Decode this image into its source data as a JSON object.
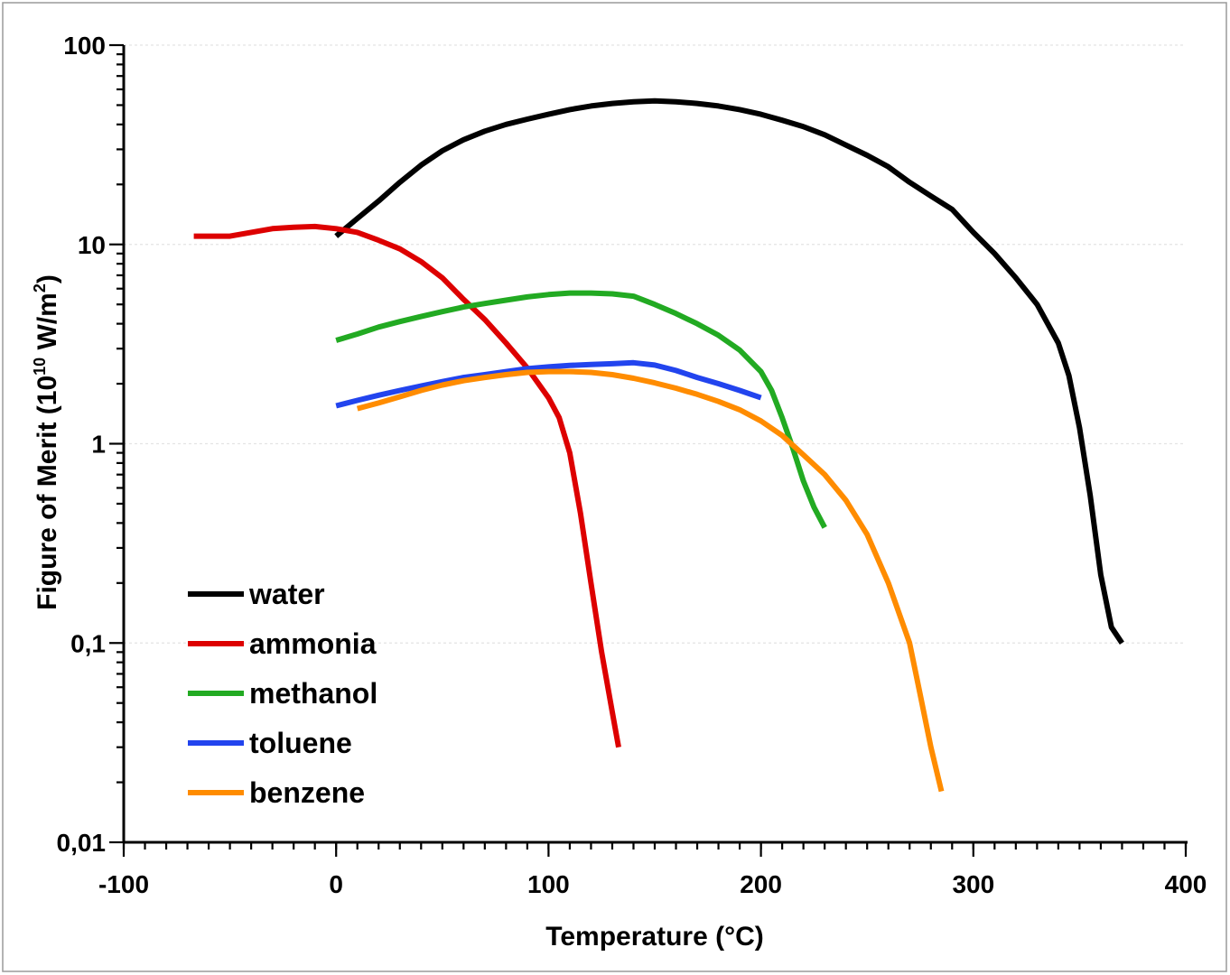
{
  "chart_data": {
    "type": "line",
    "xlabel": "Temperature (°C)",
    "ylabel": {
      "prefix": "Figure of Merit (10",
      "sup1": "10",
      "mid": " W/m",
      "sup2": "2",
      "suffix": ")"
    },
    "xlim": [
      -100,
      400
    ],
    "ylim": [
      0.01,
      100
    ],
    "yscale": "log",
    "x_ticks": [
      -100,
      0,
      100,
      200,
      300,
      400
    ],
    "x_tick_labels": [
      "-100",
      "0",
      "100",
      "200",
      "300",
      "400"
    ],
    "x_minor_step": 10,
    "y_ticks": [
      0.01,
      0.1,
      1,
      10,
      100
    ],
    "y_tick_labels": [
      "0,01",
      "0,1",
      "1",
      "10",
      "100"
    ],
    "grid": true,
    "legend_position": "lower-left",
    "series": [
      {
        "name": "water",
        "color": "#000000",
        "x": [
          0,
          10,
          20,
          30,
          40,
          50,
          60,
          70,
          80,
          90,
          100,
          110,
          120,
          130,
          140,
          150,
          160,
          170,
          180,
          190,
          200,
          210,
          220,
          230,
          240,
          250,
          260,
          270,
          280,
          290,
          300,
          310,
          320,
          330,
          340,
          345,
          350,
          355,
          360,
          365,
          370
        ],
        "y": [
          11,
          13.5,
          16.5,
          20.5,
          25,
          29.5,
          33.5,
          37,
          40,
          42.5,
          45,
          47.5,
          49.5,
          51,
          52,
          52.5,
          52,
          51,
          49.5,
          47.5,
          45,
          42,
          39,
          35.5,
          31.5,
          28,
          24.5,
          20.5,
          17.5,
          15,
          11.5,
          9,
          6.8,
          5,
          3.2,
          2.2,
          1.2,
          0.55,
          0.22,
          0.12,
          0.1
        ]
      },
      {
        "name": "ammonia",
        "color": "#dd0000",
        "x": [
          -67,
          -60,
          -50,
          -40,
          -30,
          -20,
          -10,
          0,
          10,
          20,
          30,
          40,
          50,
          60,
          70,
          80,
          90,
          100,
          105,
          110,
          115,
          120,
          125,
          130,
          133
        ],
        "y": [
          11,
          11,
          11,
          11.5,
          12,
          12.2,
          12.3,
          12,
          11.5,
          10.5,
          9.5,
          8.2,
          6.8,
          5.3,
          4.2,
          3.2,
          2.4,
          1.7,
          1.35,
          0.9,
          0.45,
          0.2,
          0.09,
          0.045,
          0.03
        ]
      },
      {
        "name": "methanol",
        "color": "#22aa22",
        "x": [
          0,
          10,
          20,
          30,
          40,
          50,
          60,
          70,
          80,
          90,
          100,
          110,
          120,
          130,
          140,
          150,
          160,
          170,
          180,
          190,
          200,
          205,
          210,
          215,
          220,
          225,
          230
        ],
        "y": [
          3.3,
          3.55,
          3.85,
          4.1,
          4.35,
          4.6,
          4.85,
          5.05,
          5.25,
          5.45,
          5.6,
          5.7,
          5.7,
          5.65,
          5.5,
          5,
          4.5,
          4,
          3.5,
          2.95,
          2.3,
          1.85,
          1.35,
          0.95,
          0.65,
          0.48,
          0.38
        ]
      },
      {
        "name": "toluene",
        "color": "#2244ee",
        "x": [
          0,
          10,
          20,
          30,
          40,
          50,
          60,
          70,
          80,
          90,
          100,
          110,
          120,
          130,
          140,
          150,
          160,
          170,
          180,
          190,
          200
        ],
        "y": [
          1.55,
          1.65,
          1.75,
          1.85,
          1.95,
          2.05,
          2.15,
          2.22,
          2.3,
          2.38,
          2.43,
          2.47,
          2.5,
          2.52,
          2.55,
          2.48,
          2.33,
          2.15,
          2,
          1.85,
          1.7
        ]
      },
      {
        "name": "benzene",
        "color": "#ff8c00",
        "x": [
          10,
          20,
          30,
          40,
          50,
          60,
          70,
          80,
          90,
          100,
          110,
          120,
          130,
          140,
          150,
          160,
          170,
          180,
          190,
          200,
          210,
          220,
          230,
          240,
          250,
          260,
          270,
          275,
          280,
          285
        ],
        "y": [
          1.5,
          1.6,
          1.72,
          1.85,
          1.97,
          2.07,
          2.15,
          2.22,
          2.28,
          2.3,
          2.3,
          2.28,
          2.22,
          2.13,
          2.02,
          1.9,
          1.77,
          1.63,
          1.48,
          1.3,
          1.1,
          0.88,
          0.7,
          0.52,
          0.35,
          0.2,
          0.1,
          0.055,
          0.03,
          0.018
        ]
      }
    ]
  }
}
